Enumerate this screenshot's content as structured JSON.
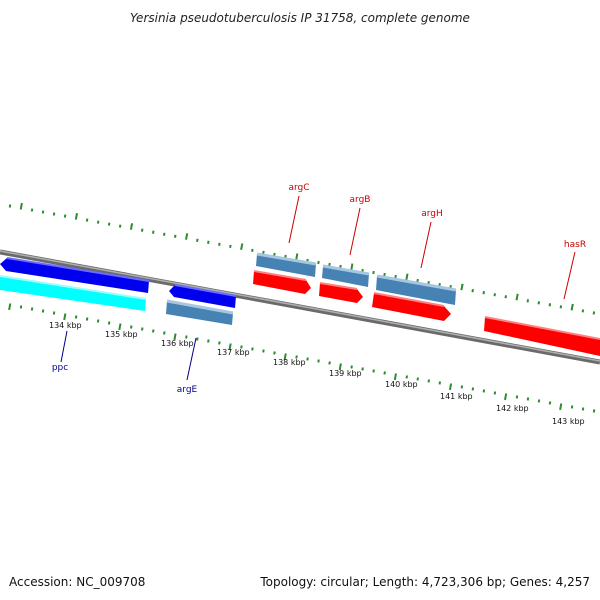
{
  "title": "Yersinia pseudotuberculosis IP 31758, complete genome",
  "footer": {
    "accession": "Accession: NC_009708",
    "summary": "Topology: circular; Length: 4,723,306 bp; Genes: 4,257"
  },
  "colors": {
    "backbone": "#888888",
    "tick": "#2e8b2e",
    "label_above": "#cc0000",
    "label_below": "#00008b",
    "gene_blue": "#0000ee",
    "gene_cyan": "#00ffff",
    "gene_steel": "#4682b4",
    "gene_red": "#ff0000"
  },
  "ticks": {
    "labels": [
      "134 kbp",
      "135 kbp",
      "136 kbp",
      "137 kbp",
      "138 kbp",
      "139 kbp",
      "140 kbp",
      "141 kbp",
      "142 kbp",
      "143 kbp"
    ]
  },
  "genes": [
    {
      "name": "ppc",
      "label_side": "below",
      "color": "gene_blue"
    },
    {
      "name": "",
      "label_side": "none",
      "color": "gene_cyan"
    },
    {
      "name": "argE",
      "label_side": "below",
      "color": "gene_steel"
    },
    {
      "name": "argC",
      "label_side": "above",
      "color": "gene_steel"
    },
    {
      "name": "argB",
      "label_side": "above",
      "color": "gene_steel"
    },
    {
      "name": "argH",
      "label_side": "above",
      "color": "gene_steel"
    },
    {
      "name": "hasR",
      "label_side": "above",
      "color": "gene_red"
    }
  ]
}
